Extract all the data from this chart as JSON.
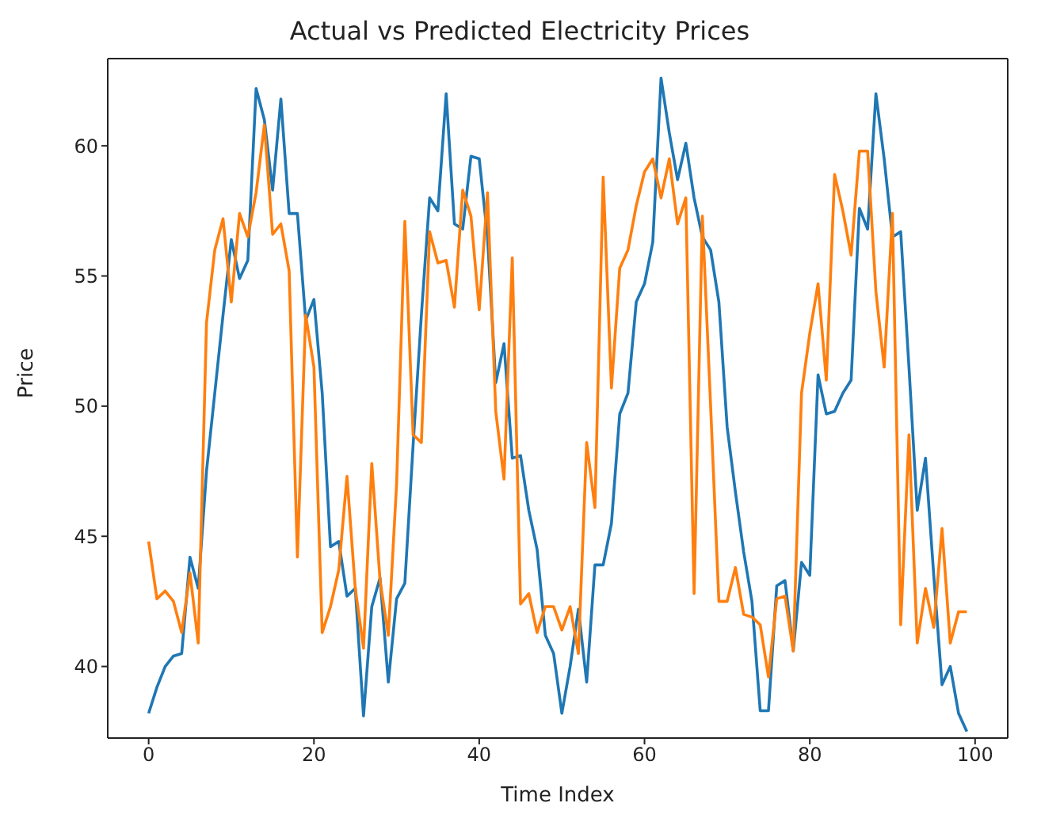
{
  "chart_data": {
    "type": "line",
    "title": "Actual vs Predicted Electricity Prices",
    "xlabel": "Time Index",
    "ylabel": "Price",
    "x": [
      0,
      1,
      2,
      3,
      4,
      5,
      6,
      7,
      8,
      9,
      10,
      11,
      12,
      13,
      14,
      15,
      16,
      17,
      18,
      19,
      20,
      21,
      22,
      23,
      24,
      25,
      26,
      27,
      28,
      29,
      30,
      31,
      32,
      33,
      34,
      35,
      36,
      37,
      38,
      39,
      40,
      41,
      42,
      43,
      44,
      45,
      46,
      47,
      48,
      49,
      50,
      51,
      52,
      53,
      54,
      55,
      56,
      57,
      58,
      59,
      60,
      61,
      62,
      63,
      64,
      65,
      66,
      67,
      68,
      69,
      70,
      71,
      72,
      73,
      74,
      75,
      76,
      77,
      78,
      79,
      80,
      81,
      82,
      83,
      84,
      85,
      86,
      87,
      88,
      89,
      90,
      91,
      92,
      93,
      94,
      95,
      96,
      97,
      98,
      99
    ],
    "series": [
      {
        "color": "#1f77b4",
        "values": [
          38.2,
          39.2,
          40.0,
          40.4,
          40.5,
          44.2,
          43.0,
          47.5,
          50.5,
          53.5,
          56.4,
          54.9,
          55.6,
          62.2,
          61.0,
          58.3,
          61.8,
          57.4,
          57.4,
          53.3,
          54.1,
          50.5,
          44.6,
          44.8,
          42.7,
          43.0,
          38.1,
          42.3,
          43.4,
          39.4,
          42.6,
          43.2,
          48.5,
          53.5,
          58.0,
          57.5,
          62.0,
          57.0,
          56.8,
          59.6,
          59.5,
          56.5,
          50.9,
          52.4,
          48.0,
          48.1,
          46.0,
          44.5,
          41.2,
          40.5,
          38.2,
          40.0,
          42.2,
          39.4,
          43.9,
          43.9,
          45.5,
          49.7,
          50.5,
          54.0,
          54.7,
          56.3,
          62.6,
          60.5,
          58.7,
          60.1,
          58.0,
          56.5,
          56.0,
          54.0,
          49.2,
          46.7,
          44.4,
          42.5,
          38.3,
          38.3,
          43.1,
          43.3,
          40.6,
          44.0,
          43.5,
          51.2,
          49.7,
          49.8,
          50.5,
          51.0,
          57.6,
          56.8,
          62.0,
          59.5,
          56.5,
          56.7,
          51.5,
          46.0,
          48.0,
          43.5,
          39.3,
          40.0,
          38.2,
          37.5
        ]
      },
      {
        "color": "#ff7f0e",
        "values": [
          44.8,
          42.6,
          42.9,
          42.5,
          41.3,
          43.6,
          40.9,
          53.2,
          56.0,
          57.2,
          54.0,
          57.4,
          56.5,
          58.2,
          60.8,
          56.6,
          57.0,
          55.2,
          44.2,
          53.5,
          51.5,
          41.3,
          42.3,
          43.7,
          47.3,
          43.0,
          40.7,
          47.8,
          43.3,
          41.2,
          47.0,
          57.1,
          48.9,
          48.6,
          56.7,
          55.5,
          55.6,
          53.8,
          58.3,
          57.3,
          53.7,
          58.2,
          49.8,
          47.2,
          55.7,
          42.4,
          42.8,
          41.3,
          42.3,
          42.3,
          41.4,
          42.3,
          40.5,
          48.6,
          46.1,
          58.8,
          50.7,
          55.3,
          56.0,
          57.7,
          59.0,
          59.5,
          58.0,
          59.5,
          57.0,
          58.0,
          42.8,
          57.3,
          50.0,
          42.5,
          42.5,
          43.8,
          42.0,
          41.9,
          41.6,
          39.6,
          42.6,
          42.7,
          40.6,
          50.5,
          52.8,
          54.7,
          51.0,
          58.9,
          57.5,
          55.8,
          59.8,
          59.8,
          54.4,
          51.5,
          57.4,
          41.6,
          48.9,
          40.9,
          43.0,
          41.5,
          45.3,
          40.9,
          42.1,
          42.1
        ]
      }
    ],
    "xlim": [
      -4.95,
      103.95
    ],
    "xticks": [
      0,
      20,
      40,
      60,
      80,
      100
    ],
    "ylim": [
      37.25,
      63.35
    ],
    "yticks": [
      40,
      45,
      50,
      55,
      60
    ],
    "grid": false,
    "legend": false,
    "marker": "none",
    "line_style": "solid"
  }
}
